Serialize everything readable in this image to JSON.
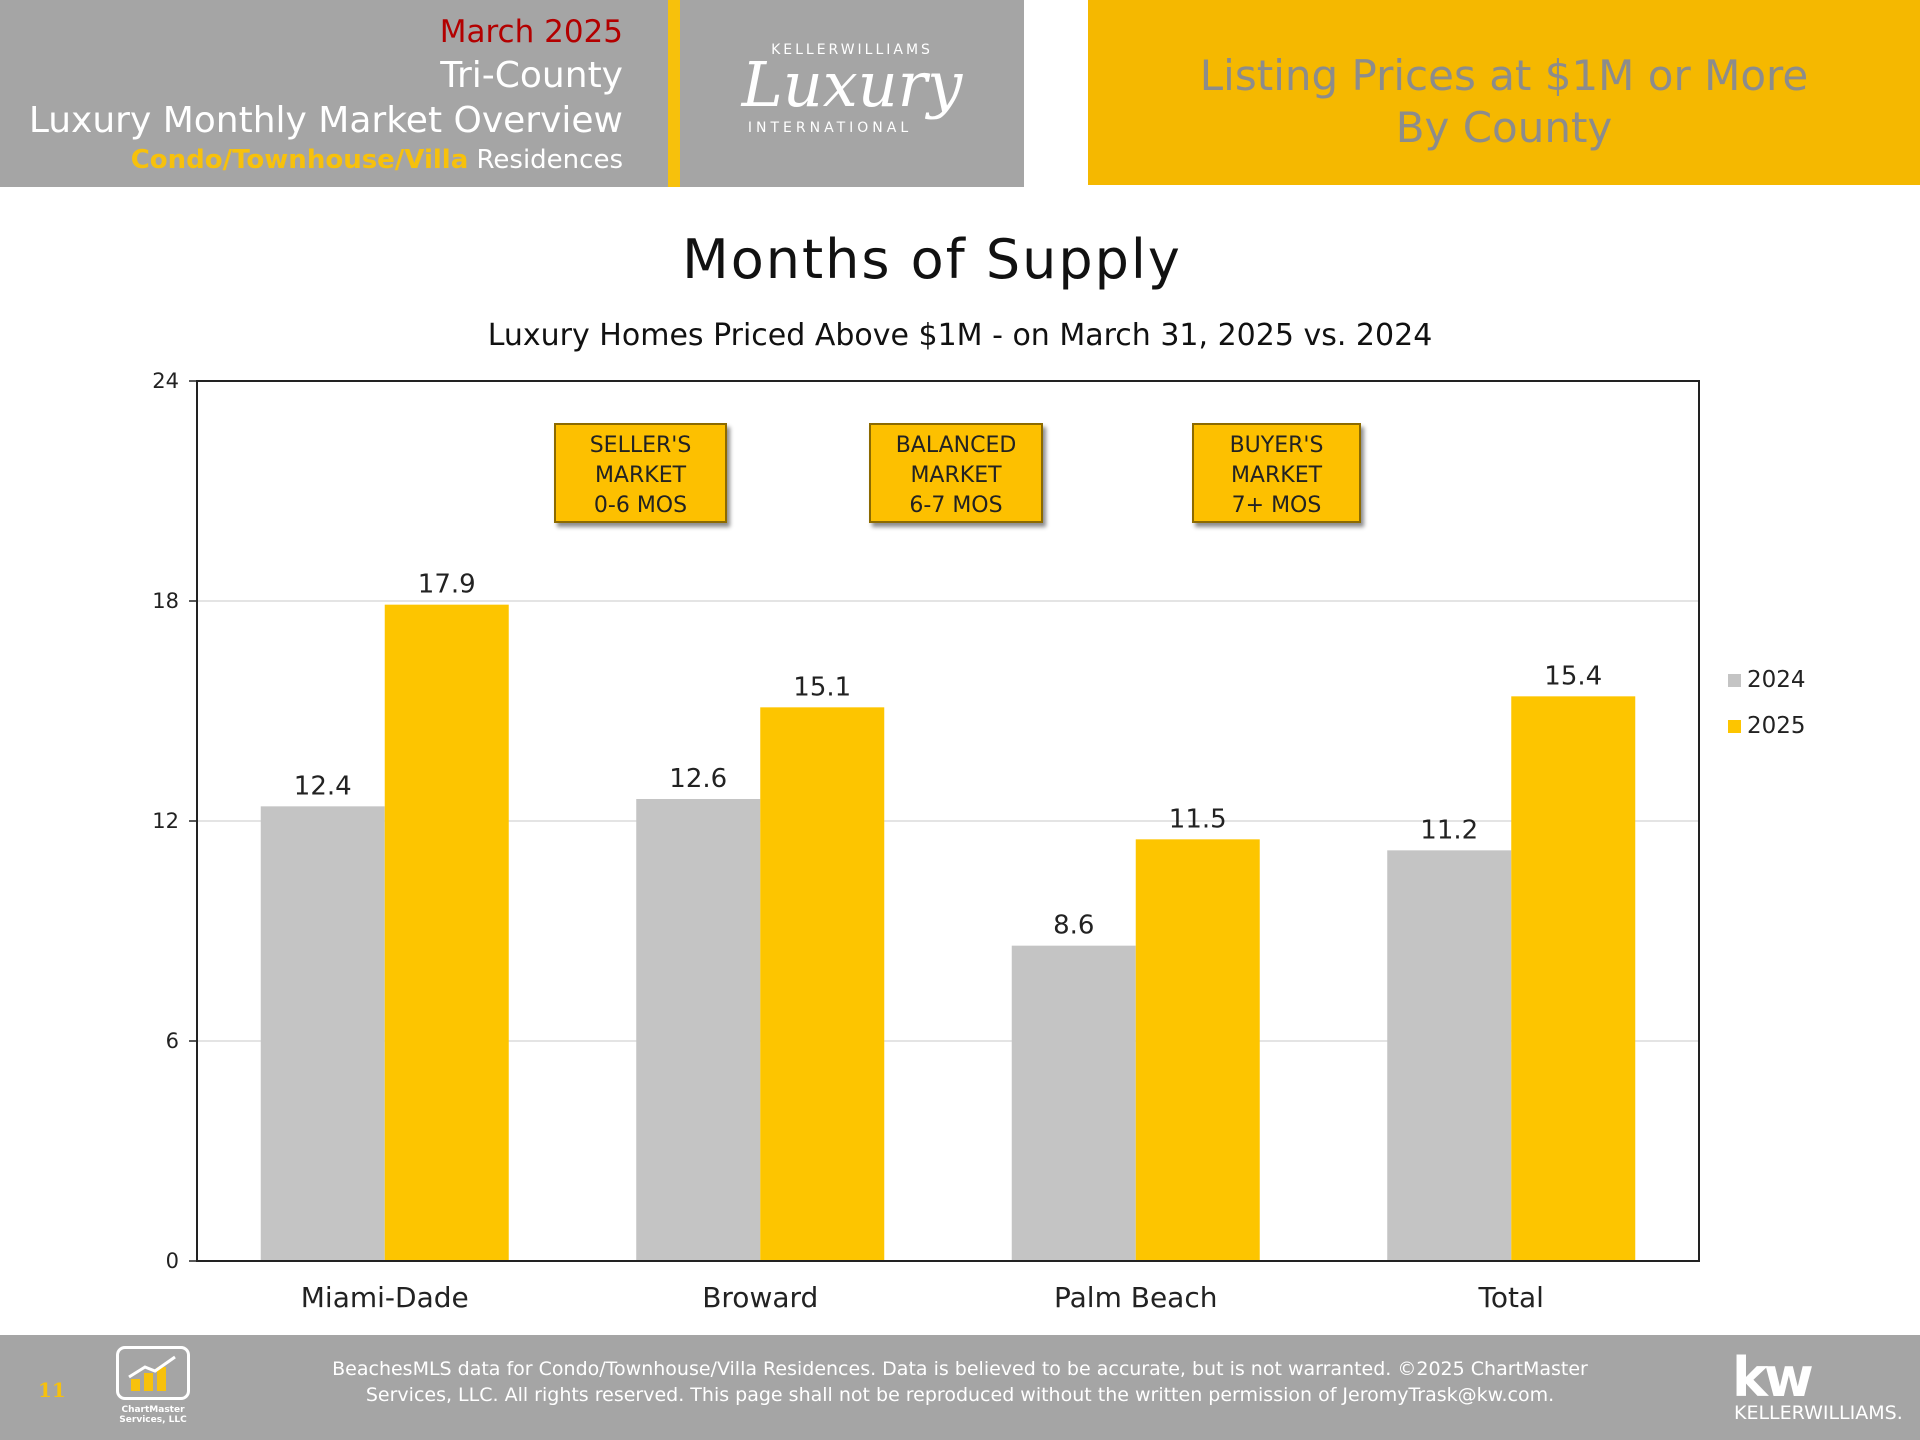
{
  "header": {
    "month": "March 2025",
    "region": "Tri-County",
    "title": "Luxury Monthly Market Overview",
    "subtitle_highlight": "Condo/Townhouse/Villa",
    "subtitle_rest": " Residences",
    "logo_top": "KELLERWILLIAMS",
    "logo_script": "Luxury",
    "logo_bottom": "INTERNATIONAL",
    "right_line1": "Listing Prices at $1M or More",
    "right_line2": "By County"
  },
  "annotations": [
    {
      "lines": [
        "SELLER'S",
        "MARKET",
        "0-6 MOS"
      ]
    },
    {
      "lines": [
        "BALANCED",
        "MARKET",
        "6-7 MOS"
      ]
    },
    {
      "lines": [
        "BUYER'S",
        "MARKET",
        "7+ MOS"
      ]
    }
  ],
  "chart_data": {
    "type": "bar",
    "title": "Months of Supply",
    "subtitle": "Luxury Homes Priced Above $1M - on March 31,  2025 vs. 2024",
    "categories": [
      "Miami-Dade",
      "Broward",
      "Palm Beach",
      "Total"
    ],
    "series": [
      {
        "name": "2024",
        "values": [
          12.4,
          12.6,
          8.6,
          11.2
        ],
        "labels": [
          "12.4",
          "12.6",
          "8.6",
          "11.2"
        ],
        "color": "#c4c4c4"
      },
      {
        "name": "2025",
        "values": [
          17.9,
          15.1,
          11.5,
          15.4
        ],
        "labels": [
          "17.9",
          "15.1",
          "11.5",
          "15.4"
        ],
        "color": "#fdc500"
      }
    ],
    "ylim": [
      0,
      24
    ],
    "yticks": [
      "0",
      "6",
      "12",
      "18",
      "24"
    ],
    "xlabel": "",
    "ylabel": "",
    "grid": true,
    "legend": "right"
  },
  "footer": {
    "page_number": "11",
    "logo_text_1": "ChartMaster",
    "logo_text_2": "Services, LLC",
    "disclaimer_line1": "BeachesMLS data for Condo/Townhouse/Villa Residences.  Data is believed to be accurate, but is not warranted.   ©2025  ChartMaster",
    "disclaimer_line2": "Services, LLC.  All rights reserved. This page shall not be reproduced without the written permission of JeromyTrask@kw.com.",
    "kw_logo": "kw",
    "kw_name": "KELLERWILLIAMS."
  },
  "colors": {
    "gold": "#f5b800",
    "gray": "#a5a5a5",
    "red": "#b30000"
  }
}
